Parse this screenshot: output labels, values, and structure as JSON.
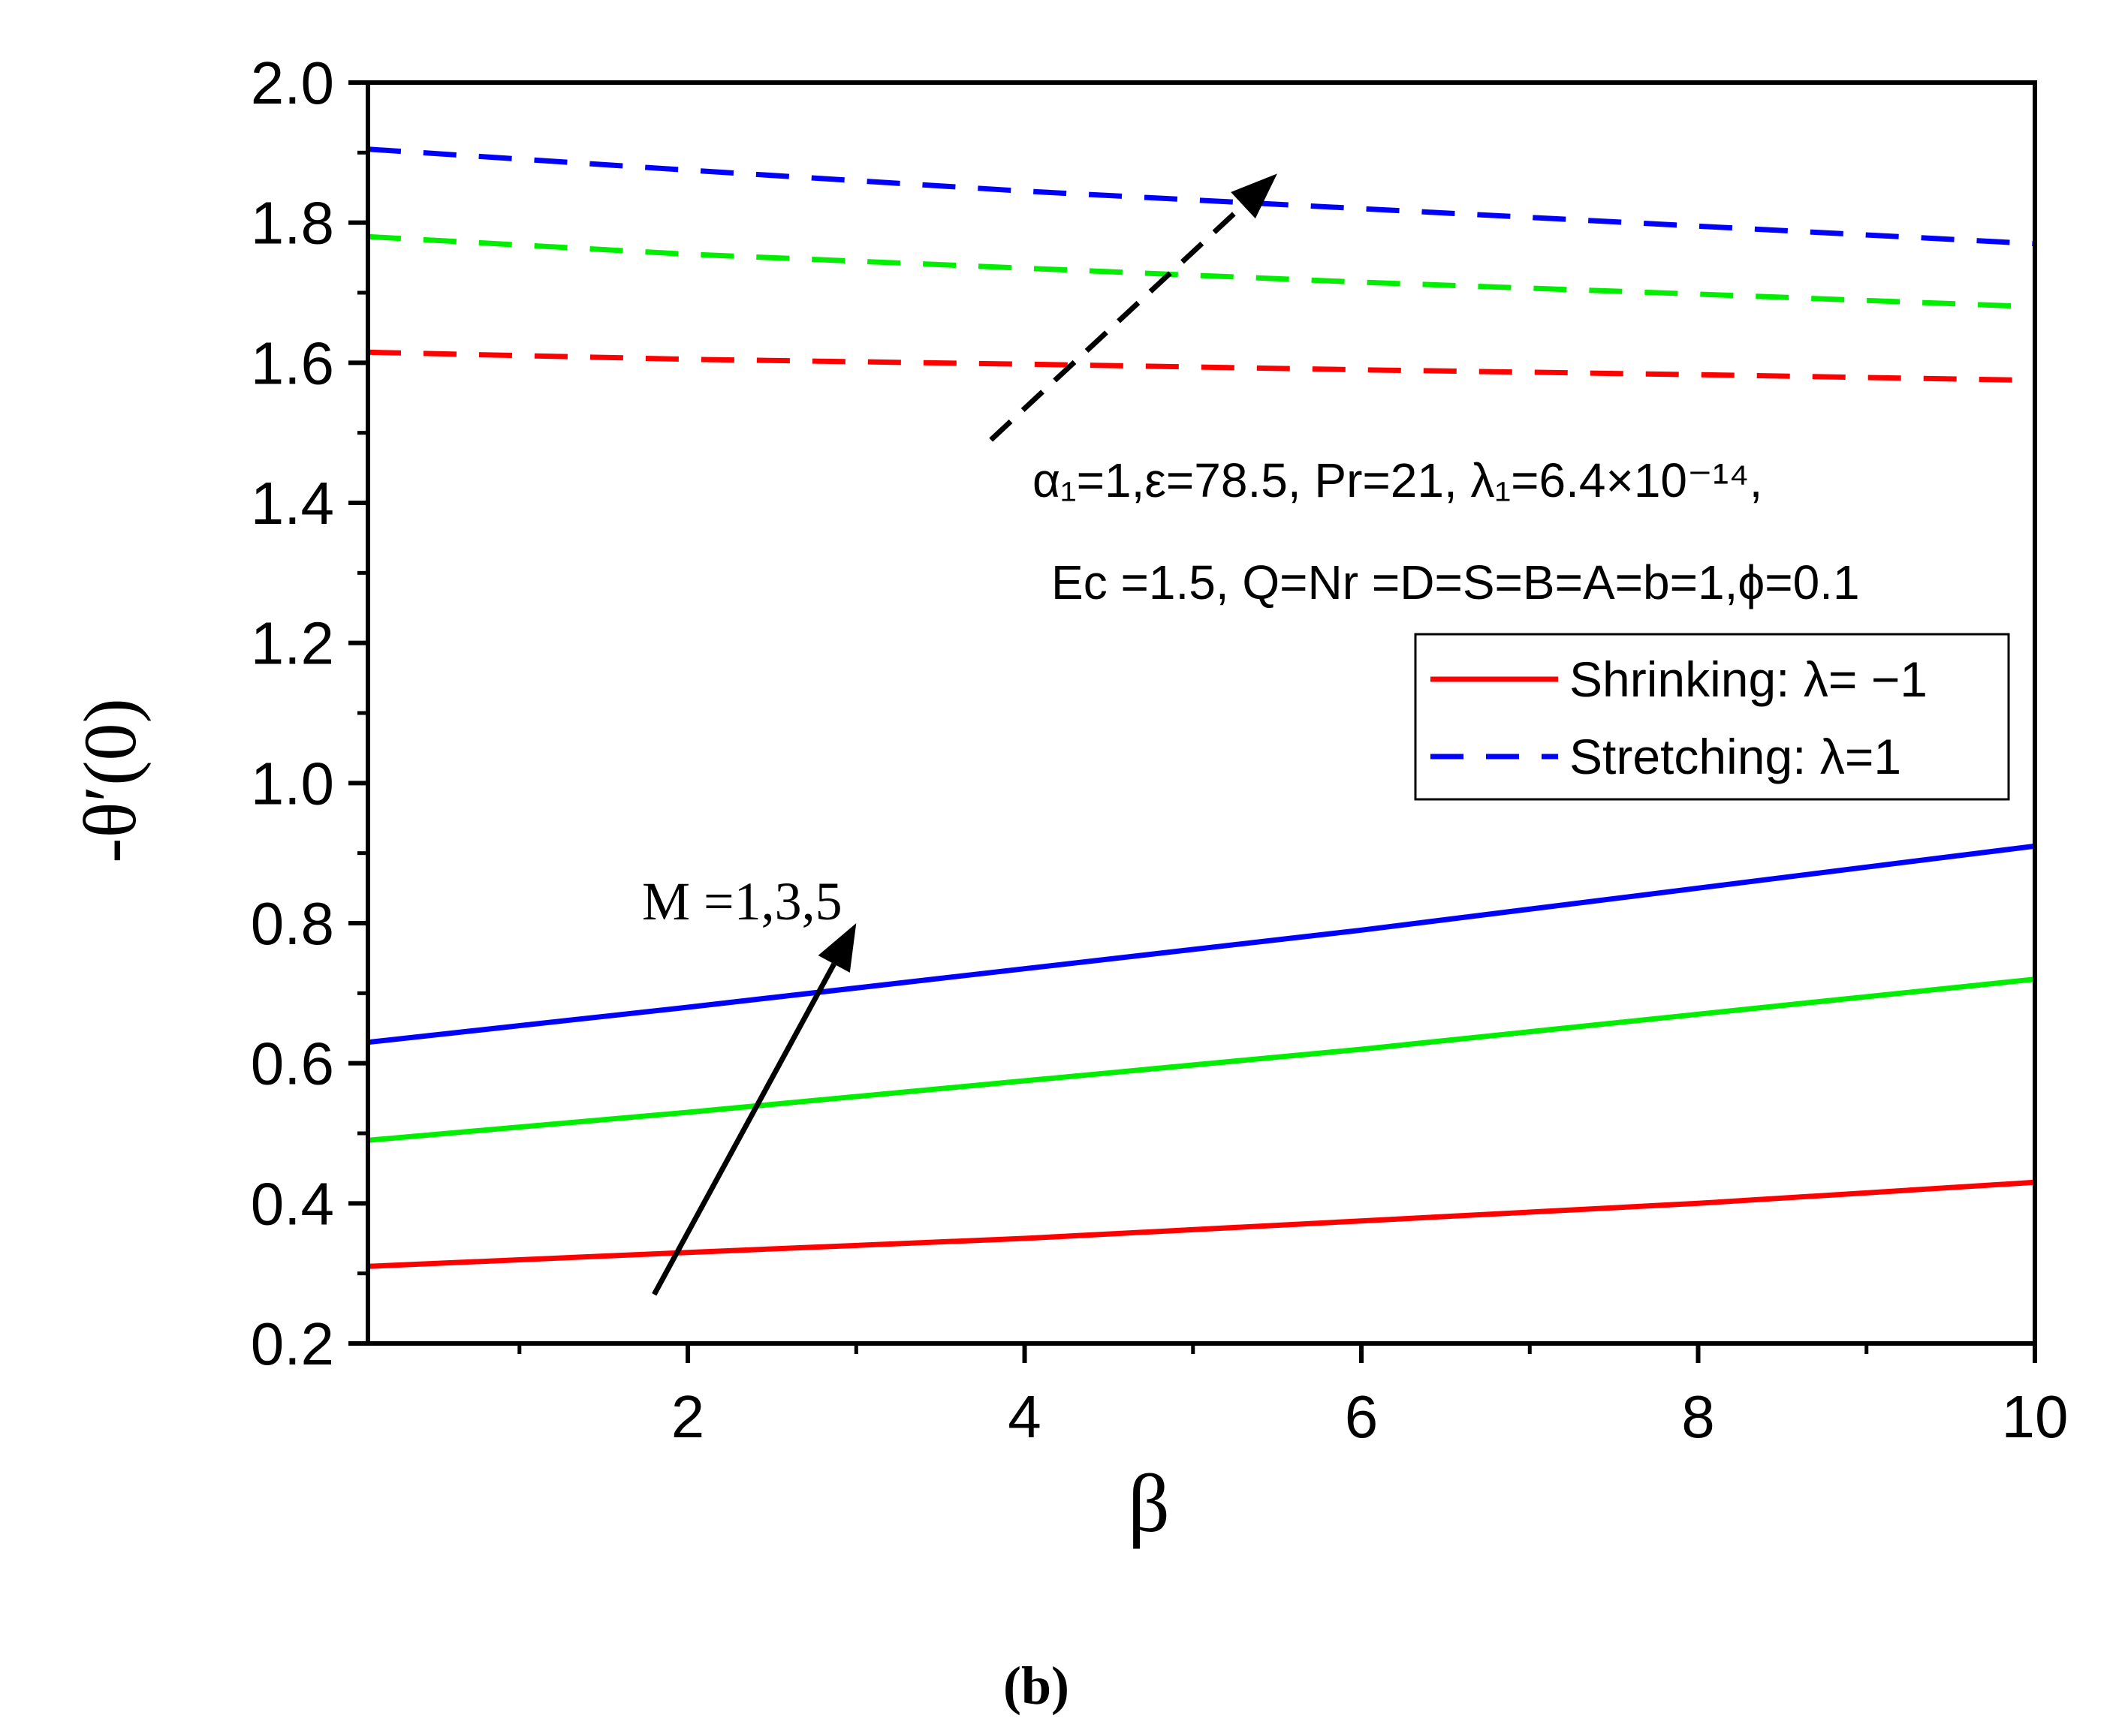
{
  "chart_data": {
    "type": "line",
    "xlabel": "β",
    "ylabel": "-θ′(0)",
    "xlim": [
      0.1,
      10
    ],
    "ylim": [
      0.2,
      2.0
    ],
    "x_major_ticks": [
      2,
      4,
      6,
      8,
      10
    ],
    "y_major_ticks": [
      0.2,
      0.4,
      0.6,
      0.8,
      1.0,
      1.2,
      1.4,
      1.6,
      1.8,
      2.0
    ],
    "x_tick_labels": [
      "2",
      "4",
      "6",
      "8",
      "10"
    ],
    "y_tick_labels": [
      "0.2",
      "0.4",
      "0.6",
      "0.8",
      "1.0",
      "1.2",
      "1.4",
      "1.6",
      "1.8",
      "2.0"
    ],
    "x": [
      0.1,
      2,
      4,
      6,
      8,
      10
    ],
    "series": [
      {
        "name": "Shrinking M=1",
        "group": "shrinking",
        "color": "#ff0000",
        "style": "solid",
        "values": [
          0.31,
          0.33,
          0.35,
          0.375,
          0.4,
          0.43
        ]
      },
      {
        "name": "Shrinking M=3",
        "group": "shrinking",
        "color": "#00ee00",
        "style": "solid",
        "values": [
          0.49,
          0.53,
          0.575,
          0.62,
          0.67,
          0.72
        ]
      },
      {
        "name": "Shrinking M=5",
        "group": "shrinking",
        "color": "#0000ff",
        "style": "solid",
        "values": [
          0.63,
          0.68,
          0.735,
          0.79,
          0.85,
          0.91
        ]
      },
      {
        "name": "Stretching M=1",
        "group": "stretching",
        "color": "#ff0000",
        "style": "dashed",
        "values": [
          1.615,
          1.605,
          1.598,
          1.59,
          1.583,
          1.575
        ]
      },
      {
        "name": "Stretching M=3",
        "group": "stretching",
        "color": "#00ee00",
        "style": "dashed",
        "values": [
          1.78,
          1.755,
          1.735,
          1.715,
          1.698,
          1.68
        ]
      },
      {
        "name": "Stretching M=5",
        "group": "stretching",
        "color": "#0000ff",
        "style": "dashed",
        "values": [
          1.905,
          1.875,
          1.845,
          1.82,
          1.795,
          1.77
        ]
      }
    ],
    "legend": {
      "position": "center-right",
      "entries": [
        {
          "label": "Shrinking: λ= −1",
          "color": "#ff0000",
          "style": "solid"
        },
        {
          "label": "Stretching: λ=1",
          "color": "#0000ff",
          "style": "dashed"
        }
      ]
    },
    "annotations": {
      "m_label": "M =1,3,5",
      "params_line1": "α₁=1,ε=78.5, Pr=21, λ₁=6.4×10⁻¹⁴,",
      "params_line2": "Ec =1.5, Q=Nr =D=S=B=A=b=1,ϕ=0.1",
      "arrow_solid": {
        "from": [
          1.8,
          0.27
        ],
        "to": [
          3.0,
          0.8
        ]
      },
      "arrow_dashed": {
        "from": [
          3.8,
          1.49
        ],
        "to": [
          5.5,
          1.87
        ]
      }
    },
    "caption": "(b)"
  },
  "colors": {
    "axis": "#000000",
    "arrow": "#000000"
  }
}
